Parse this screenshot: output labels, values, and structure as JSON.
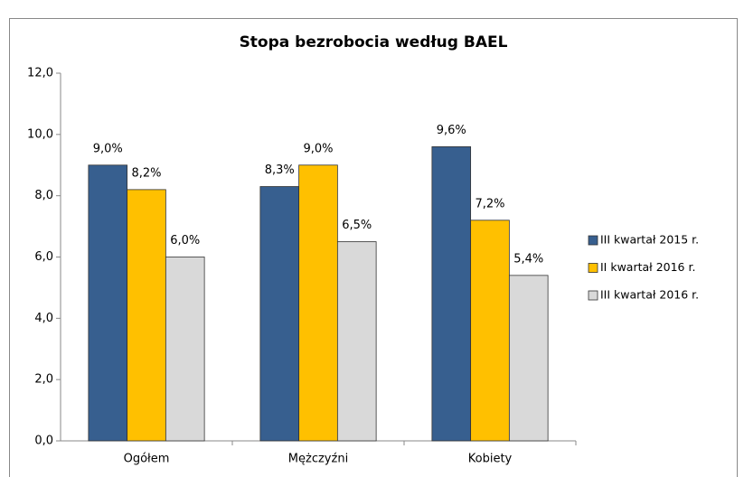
{
  "chart_data": {
    "type": "bar",
    "title": "Stopa bezrobocia według BAEL",
    "categories": [
      "Ogółem",
      "Mężczyźni",
      "Kobiety"
    ],
    "series": [
      {
        "name": "III kwartał 2015 r.",
        "color": "#375f8f",
        "values": [
          9.0,
          8.3,
          9.6
        ],
        "value_labels": [
          "9,0%",
          "8,3%",
          "9,6%"
        ]
      },
      {
        "name": "II kwartał 2016 r.",
        "color": "#ffc000",
        "values": [
          8.2,
          9.0,
          7.2
        ],
        "value_labels": [
          "8,2%",
          "9,0%",
          "7,2%"
        ]
      },
      {
        "name": "III kwartał 2016 r.",
        "color": "#d9d9d9",
        "values": [
          6.0,
          6.5,
          5.4
        ],
        "value_labels": [
          "6,0%",
          "6,5%",
          "5,4%"
        ]
      }
    ],
    "ylim": [
      0,
      12
    ],
    "yticks": [
      {
        "value": 0,
        "label": "0,0"
      },
      {
        "value": 2,
        "label": "2,0"
      },
      {
        "value": 4,
        "label": "4,0"
      },
      {
        "value": 6,
        "label": "6,0"
      },
      {
        "value": 8,
        "label": "8,0"
      },
      {
        "value": 10,
        "label": "10,0"
      },
      {
        "value": 12,
        "label": "12,0"
      }
    ],
    "grid": false,
    "legend": "right"
  }
}
